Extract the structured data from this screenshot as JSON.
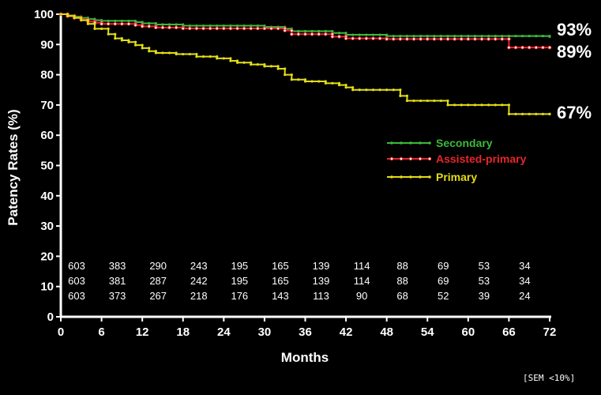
{
  "chart_data": {
    "type": "line",
    "xlabel": "Months",
    "ylabel": "Patency Rates (%)",
    "xlim": [
      0,
      72
    ],
    "ylim": [
      0,
      100
    ],
    "xticks": [
      "0",
      "6",
      "12",
      "18",
      "24",
      "30",
      "36",
      "42",
      "48",
      "54",
      "60",
      "66",
      "72"
    ],
    "yticks": [
      "0",
      "10",
      "20",
      "30",
      "40",
      "50",
      "60",
      "70",
      "80",
      "90",
      "100"
    ],
    "grid": false,
    "legend_position": "center-right",
    "series": [
      {
        "name": "Secondary",
        "color": "#3cb93c",
        "end_label": "93%",
        "steps": [
          [
            0,
            100
          ],
          [
            1,
            99.6
          ],
          [
            2,
            99.2
          ],
          [
            3,
            98.8
          ],
          [
            4,
            98.4
          ],
          [
            5,
            98
          ],
          [
            6,
            97.8
          ],
          [
            11,
            97.4
          ],
          [
            12,
            97
          ],
          [
            14,
            96.6
          ],
          [
            18,
            96.2
          ],
          [
            30,
            95.8
          ],
          [
            33,
            95.2
          ],
          [
            34,
            94.4
          ],
          [
            40,
            93.8
          ],
          [
            42,
            93.2
          ],
          [
            48,
            92.8
          ],
          [
            72,
            92.6
          ]
        ]
      },
      {
        "name": "Assisted-primary",
        "color": "#e8262a",
        "end_label": "89%",
        "steps": [
          [
            0,
            100
          ],
          [
            1,
            99.4
          ],
          [
            2,
            98.8
          ],
          [
            3,
            98.2
          ],
          [
            4,
            97.6
          ],
          [
            5,
            97.2
          ],
          [
            6,
            96.8
          ],
          [
            11,
            96.4
          ],
          [
            12,
            96
          ],
          [
            14,
            95.6
          ],
          [
            18,
            95.3
          ],
          [
            33,
            94.6
          ],
          [
            34,
            93.4
          ],
          [
            40,
            92.6
          ],
          [
            42,
            92
          ],
          [
            48,
            91.8
          ],
          [
            66,
            89
          ],
          [
            72,
            89
          ]
        ]
      },
      {
        "name": "Primary",
        "color": "#e3dd15",
        "end_label": "67%",
        "steps": [
          [
            0,
            100
          ],
          [
            1,
            99.4
          ],
          [
            2,
            98.8
          ],
          [
            3,
            98
          ],
          [
            4,
            96.8
          ],
          [
            5,
            95.2
          ],
          [
            7,
            93.4
          ],
          [
            8,
            92
          ],
          [
            9,
            91.4
          ],
          [
            10,
            90.8
          ],
          [
            11,
            89.8
          ],
          [
            12,
            88.8
          ],
          [
            13,
            87.8
          ],
          [
            14,
            87.2
          ],
          [
            17,
            86.8
          ],
          [
            20,
            86
          ],
          [
            23,
            85.4
          ],
          [
            25,
            84.6
          ],
          [
            26,
            84
          ],
          [
            28,
            83.4
          ],
          [
            30,
            82.8
          ],
          [
            32,
            82
          ],
          [
            33,
            80
          ],
          [
            34,
            78.4
          ],
          [
            36,
            77.8
          ],
          [
            39,
            77.2
          ],
          [
            41,
            76.6
          ],
          [
            42,
            75.8
          ],
          [
            43,
            75
          ],
          [
            50,
            73
          ],
          [
            51,
            71.4
          ],
          [
            57,
            70
          ],
          [
            66,
            67
          ],
          [
            72,
            67
          ]
        ]
      }
    ],
    "at_risk": {
      "x": [
        0,
        6,
        12,
        18,
        24,
        30,
        36,
        42,
        48,
        54,
        60,
        66
      ],
      "rows": [
        [
          "603",
          "383",
          "290",
          "243",
          "195",
          "165",
          "139",
          "114",
          "88",
          "69",
          "53",
          "34"
        ],
        [
          "603",
          "381",
          "287",
          "242",
          "195",
          "165",
          "139",
          "114",
          "88",
          "69",
          "53",
          "34"
        ],
        [
          "603",
          "373",
          "267",
          "218",
          "176",
          "143",
          "113",
          "90",
          "68",
          "52",
          "39",
          "24"
        ]
      ]
    },
    "note": "[SEM <10%]"
  }
}
